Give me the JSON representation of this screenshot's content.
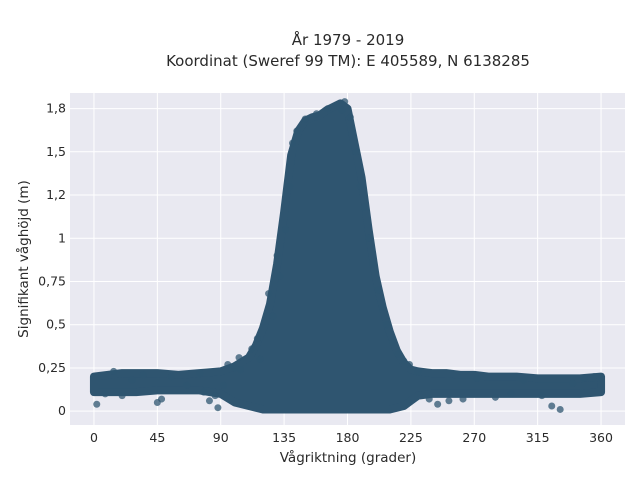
{
  "chart_data": {
    "type": "scatter",
    "title_line1": "År 1979 - 2019",
    "title_line2": "Koordinat (Sweref 99 TM): E 405589, N 6138285",
    "xlabel": "Vågriktning (grader)",
    "ylabel": "Signifikant våghöjd (m)",
    "xlim": [
      -17,
      377
    ],
    "ylim": [
      -0.08,
      1.84
    ],
    "x_ticks": [
      0,
      45,
      90,
      135,
      180,
      225,
      270,
      315,
      360
    ],
    "x_tick_labels": [
      "0",
      "45",
      "90",
      "135",
      "180",
      "225",
      "270",
      "315",
      "360"
    ],
    "y_ticks": [
      0,
      0.25,
      0.5,
      0.75,
      1,
      1.25,
      1.5,
      1.75
    ],
    "y_tick_labels": [
      "0",
      "0,25",
      "0,5",
      "0,75",
      "1",
      "1,2",
      "1,5",
      "1,8"
    ],
    "grid": true,
    "plot_background": "#e9e9f1",
    "marker_color": "#2f5570",
    "envelope": {
      "x": [
        0,
        10,
        20,
        30,
        45,
        60,
        75,
        90,
        100,
        110,
        115,
        120,
        125,
        130,
        135,
        140,
        145,
        150,
        155,
        160,
        165,
        170,
        175,
        180,
        185,
        190,
        195,
        200,
        205,
        210,
        215,
        220,
        225,
        230,
        240,
        250,
        260,
        270,
        280,
        290,
        300,
        315,
        330,
        345,
        360
      ],
      "upper": [
        0.2,
        0.21,
        0.22,
        0.22,
        0.22,
        0.21,
        0.22,
        0.23,
        0.26,
        0.31,
        0.38,
        0.48,
        0.62,
        0.85,
        1.15,
        1.48,
        1.62,
        1.68,
        1.7,
        1.71,
        1.74,
        1.76,
        1.78,
        1.75,
        1.55,
        1.35,
        1.05,
        0.78,
        0.6,
        0.46,
        0.35,
        0.28,
        0.24,
        0.23,
        0.22,
        0.22,
        0.21,
        0.21,
        0.2,
        0.2,
        0.2,
        0.19,
        0.19,
        0.19,
        0.2
      ],
      "lower": [
        0.11,
        0.11,
        0.11,
        0.11,
        0.12,
        0.12,
        0.12,
        0.1,
        0.05,
        0.03,
        0.02,
        0.01,
        0.01,
        0.01,
        0.01,
        0.01,
        0.01,
        0.01,
        0.01,
        0.01,
        0.01,
        0.01,
        0.01,
        0.01,
        0.01,
        0.01,
        0.01,
        0.01,
        0.01,
        0.01,
        0.02,
        0.03,
        0.06,
        0.09,
        0.1,
        0.1,
        0.1,
        0.1,
        0.1,
        0.1,
        0.1,
        0.1,
        0.1,
        0.1,
        0.11
      ]
    },
    "sample_points": [
      {
        "x": 2,
        "y": 0.04
      },
      {
        "x": 8,
        "y": 0.1
      },
      {
        "x": 14,
        "y": 0.23
      },
      {
        "x": 20,
        "y": 0.09
      },
      {
        "x": 27,
        "y": 0.18
      },
      {
        "x": 35,
        "y": 0.21
      },
      {
        "x": 45,
        "y": 0.05
      },
      {
        "x": 48,
        "y": 0.07
      },
      {
        "x": 55,
        "y": 0.2
      },
      {
        "x": 66,
        "y": 0.15
      },
      {
        "x": 75,
        "y": 0.22
      },
      {
        "x": 78,
        "y": 0.11
      },
      {
        "x": 82,
        "y": 0.06
      },
      {
        "x": 86,
        "y": 0.09
      },
      {
        "x": 88,
        "y": 0.02
      },
      {
        "x": 92,
        "y": 0.15
      },
      {
        "x": 95,
        "y": 0.27
      },
      {
        "x": 100,
        "y": 0.25
      },
      {
        "x": 103,
        "y": 0.31
      },
      {
        "x": 104,
        "y": 0.24
      },
      {
        "x": 112,
        "y": 0.36
      },
      {
        "x": 116,
        "y": 0.42
      },
      {
        "x": 118,
        "y": 0.3
      },
      {
        "x": 124,
        "y": 0.68
      },
      {
        "x": 127,
        "y": 0.55
      },
      {
        "x": 130,
        "y": 0.9
      },
      {
        "x": 132,
        "y": 0.78
      },
      {
        "x": 136,
        "y": 1.05
      },
      {
        "x": 139,
        "y": 1.3
      },
      {
        "x": 141,
        "y": 1.55
      },
      {
        "x": 144,
        "y": 1.62
      },
      {
        "x": 150,
        "y": 1.69
      },
      {
        "x": 158,
        "y": 1.72
      },
      {
        "x": 166,
        "y": 1.75
      },
      {
        "x": 172,
        "y": 1.77
      },
      {
        "x": 178,
        "y": 1.79
      },
      {
        "x": 176,
        "y": 1.74
      },
      {
        "x": 182,
        "y": 1.7
      },
      {
        "x": 186,
        "y": 1.5
      },
      {
        "x": 189,
        "y": 1.3
      },
      {
        "x": 192,
        "y": 1.18
      },
      {
        "x": 195,
        "y": 1.0
      },
      {
        "x": 198,
        "y": 0.85
      },
      {
        "x": 202,
        "y": 0.7
      },
      {
        "x": 205,
        "y": 0.6
      },
      {
        "x": 208,
        "y": 0.5
      },
      {
        "x": 212,
        "y": 0.4
      },
      {
        "x": 216,
        "y": 0.33
      },
      {
        "x": 220,
        "y": 0.29
      },
      {
        "x": 224,
        "y": 0.27
      },
      {
        "x": 230,
        "y": 0.23
      },
      {
        "x": 238,
        "y": 0.07
      },
      {
        "x": 244,
        "y": 0.04
      },
      {
        "x": 252,
        "y": 0.06
      },
      {
        "x": 262,
        "y": 0.07
      },
      {
        "x": 272,
        "y": 0.19
      },
      {
        "x": 285,
        "y": 0.08
      },
      {
        "x": 296,
        "y": 0.1
      },
      {
        "x": 305,
        "y": 0.18
      },
      {
        "x": 318,
        "y": 0.09
      },
      {
        "x": 325,
        "y": 0.03
      },
      {
        "x": 331,
        "y": 0.01
      },
      {
        "x": 340,
        "y": 0.16
      },
      {
        "x": 348,
        "y": 0.19
      },
      {
        "x": 355,
        "y": 0.2
      },
      {
        "x": 359,
        "y": 0.2
      }
    ]
  }
}
